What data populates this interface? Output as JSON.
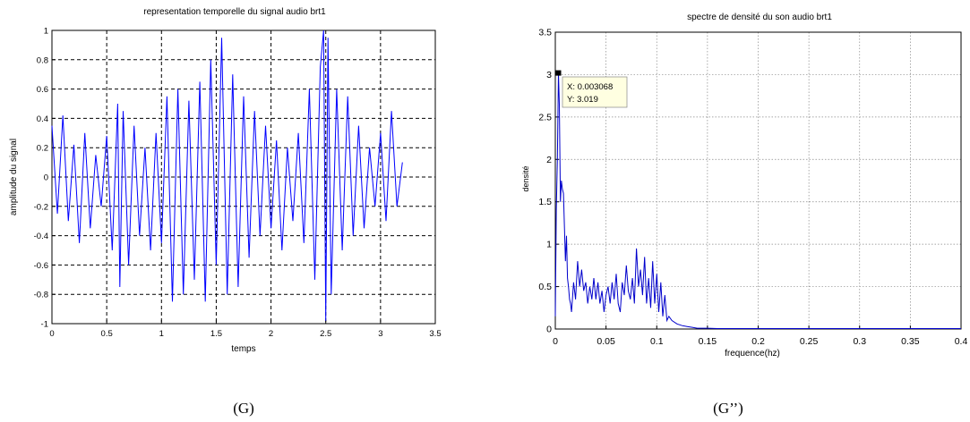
{
  "chart_data": [
    {
      "type": "line",
      "title": "representation temporelle du signal audio brt1",
      "xlabel": "temps",
      "ylabel": "amplitude du signal",
      "xlim": [
        0,
        3.5
      ],
      "ylim": [
        -1,
        1
      ],
      "xticks": [
        "0",
        "0.5",
        "1",
        "1.5",
        "2",
        "2.5",
        "3",
        "3.5"
      ],
      "yticks": [
        "-1",
        "-0.8",
        "-0.6",
        "-0.4",
        "-0.2",
        "0",
        "0.2",
        "0.4",
        "0.6",
        "0.8",
        "1"
      ],
      "grid": "on",
      "line_color": "#0000ff",
      "series": [
        {
          "x": [
            0,
            0.05,
            0.1,
            0.15,
            0.2,
            0.25,
            0.3,
            0.35,
            0.4,
            0.45,
            0.5,
            0.55,
            0.6,
            0.62,
            0.65,
            0.7,
            0.75,
            0.8,
            0.85,
            0.9,
            0.95,
            1.0,
            1.05,
            1.1,
            1.15,
            1.2,
            1.25,
            1.3,
            1.35,
            1.4,
            1.45,
            1.5,
            1.55,
            1.6,
            1.65,
            1.7,
            1.75,
            1.8,
            1.85,
            1.9,
            1.95,
            2.0,
            2.05,
            2.1,
            2.15,
            2.2,
            2.25,
            2.3,
            2.35,
            2.4,
            2.45,
            2.48,
            2.5,
            2.52,
            2.55,
            2.6,
            2.65,
            2.7,
            2.75,
            2.8,
            2.85,
            2.9,
            2.95,
            3.0,
            3.05,
            3.1,
            3.15,
            3.2
          ],
          "y": [
            0.35,
            -0.25,
            0.42,
            -0.3,
            0.22,
            -0.45,
            0.3,
            -0.35,
            0.15,
            -0.2,
            0.28,
            -0.5,
            0.5,
            -0.75,
            0.45,
            -0.6,
            0.35,
            -0.4,
            0.2,
            -0.5,
            0.3,
            -0.45,
            0.55,
            -0.85,
            0.6,
            -0.8,
            0.52,
            -0.7,
            0.65,
            -0.85,
            0.8,
            -0.6,
            0.95,
            -0.8,
            0.7,
            -0.75,
            0.55,
            -0.55,
            0.45,
            -0.4,
            0.35,
            -0.35,
            0.25,
            -0.5,
            0.2,
            -0.3,
            0.3,
            -0.45,
            0.6,
            -0.7,
            0.75,
            1.0,
            -0.98,
            0.95,
            -0.8,
            0.6,
            -0.5,
            0.55,
            -0.4,
            0.35,
            -0.35,
            0.2,
            -0.2,
            0.3,
            -0.3,
            0.45,
            -0.2,
            0.1
          ]
        }
      ]
    },
    {
      "type": "line",
      "title": "spectre de densité du son audio brt1",
      "xlabel": "frequence(hz)",
      "ylabel": "densité",
      "xlim": [
        0,
        0.4
      ],
      "ylim": [
        0,
        3.5
      ],
      "xticks": [
        "0",
        "0.05",
        "0.1",
        "0.15",
        "0.2",
        "0.25",
        "0.3",
        "0.35",
        "0.4"
      ],
      "yticks": [
        "0",
        "0.5",
        "1",
        "1.5",
        "2",
        "2.5",
        "3",
        "3.5"
      ],
      "grid": "on",
      "line_color": "#0000cc",
      "series": [
        {
          "x": [
            0,
            0.001,
            0.002,
            0.003068,
            0.004,
            0.005,
            0.006,
            0.007,
            0.008,
            0.009,
            0.01,
            0.011,
            0.012,
            0.013,
            0.014,
            0.015,
            0.016,
            0.018,
            0.02,
            0.022,
            0.024,
            0.026,
            0.028,
            0.03,
            0.032,
            0.034,
            0.036,
            0.038,
            0.04,
            0.042,
            0.044,
            0.046,
            0.048,
            0.05,
            0.052,
            0.054,
            0.056,
            0.058,
            0.06,
            0.062,
            0.064,
            0.066,
            0.068,
            0.07,
            0.072,
            0.074,
            0.076,
            0.078,
            0.08,
            0.082,
            0.084,
            0.086,
            0.088,
            0.09,
            0.092,
            0.094,
            0.096,
            0.098,
            0.1,
            0.102,
            0.104,
            0.106,
            0.108,
            0.11,
            0.112,
            0.115,
            0.12,
            0.125,
            0.13,
            0.135,
            0.14,
            0.15,
            0.16,
            0.2,
            0.25,
            0.3,
            0.35,
            0.4
          ],
          "y": [
            0.15,
            1.4,
            2.0,
            3.019,
            2.65,
            1.5,
            1.75,
            1.65,
            1.6,
            1.2,
            0.8,
            1.1,
            0.6,
            0.5,
            0.35,
            0.3,
            0.2,
            0.55,
            0.35,
            0.8,
            0.5,
            0.7,
            0.45,
            0.55,
            0.3,
            0.5,
            0.35,
            0.6,
            0.35,
            0.55,
            0.3,
            0.45,
            0.2,
            0.4,
            0.5,
            0.3,
            0.55,
            0.35,
            0.65,
            0.3,
            0.2,
            0.55,
            0.4,
            0.75,
            0.45,
            0.35,
            0.6,
            0.3,
            0.95,
            0.5,
            0.7,
            0.4,
            0.85,
            0.3,
            0.6,
            0.25,
            0.8,
            0.3,
            0.65,
            0.2,
            0.55,
            0.15,
            0.4,
            0.1,
            0.15,
            0.1,
            0.06,
            0.04,
            0.03,
            0.02,
            0.01,
            0.01,
            0.005,
            0.005,
            0.005,
            0.005,
            0.005,
            0.005
          ]
        }
      ],
      "datatip": {
        "x_text": "X: 0.003068",
        "y_text": "Y: 3.019"
      }
    }
  ],
  "captions": {
    "left": "(G)",
    "right": "(G’’)"
  }
}
